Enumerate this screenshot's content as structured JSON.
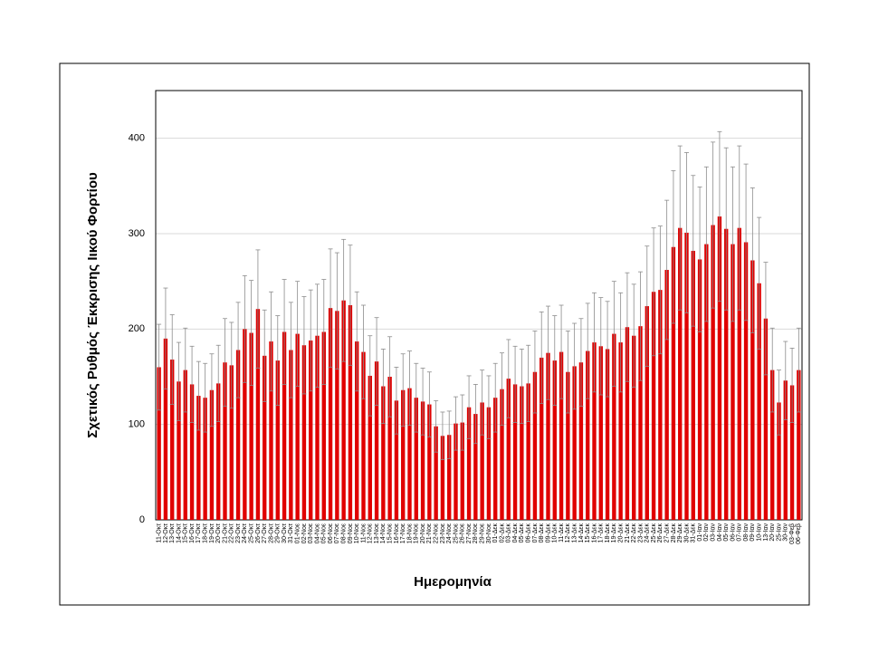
{
  "chart_data": {
    "type": "bar",
    "xlabel": "Ημερομηνία",
    "ylabel": "Σχετικός Ρυθμός Έκκρισης Ιικού Φορτίου",
    "categories": [
      "11-Οκτ",
      "12-Οκτ",
      "13-Οκτ",
      "14-Οκτ",
      "15-Οκτ",
      "16-Οκτ",
      "17-Οκτ",
      "18-Οκτ",
      "19-Οκτ",
      "20-Οκτ",
      "21-Οκτ",
      "22-Οκτ",
      "23-Οκτ",
      "24-Οκτ",
      "25-Οκτ",
      "26-Οκτ",
      "27-Οκτ",
      "28-Οκτ",
      "29-Οκτ",
      "30-Οκτ",
      "31-Οκτ",
      "01-Νοε",
      "02-Νοε",
      "03-Νοε",
      "04-Νοε",
      "05-Νοε",
      "06-Νοε",
      "07-Νοε",
      "08-Νοε",
      "09-Νοε",
      "10-Νοε",
      "11-Νοε",
      "12-Νοε",
      "13-Νοε",
      "14-Νοε",
      "15-Νοε",
      "16-Νοε",
      "17-Νοε",
      "18-Νοε",
      "19-Νοε",
      "20-Νοε",
      "21-Νοε",
      "22-Νοε",
      "23-Νοε",
      "24-Νοε",
      "25-Νοε",
      "26-Νοε",
      "27-Νοε",
      "28-Νοε",
      "29-Νοε",
      "30-Νοε",
      "01-Δεκ",
      "02-Δεκ",
      "03-Δεκ",
      "04-Δεκ",
      "05-Δεκ",
      "06-Δεκ",
      "07-Δεκ",
      "08-Δεκ",
      "09-Δεκ",
      "10-Δεκ",
      "11-Δεκ",
      "12-Δεκ",
      "13-Δεκ",
      "14-Δεκ",
      "15-Δεκ",
      "16-Δεκ",
      "17-Δεκ",
      "18-Δεκ",
      "19-Δεκ",
      "20-Δεκ",
      "21-Δεκ",
      "22-Δεκ",
      "23-Δεκ",
      "24-Δεκ",
      "25-Δεκ",
      "26-Δεκ",
      "27-Δεκ",
      "28-Δεκ",
      "29-Δεκ",
      "30-Δεκ",
      "31-Δεκ",
      "01-Ιαν",
      "02-Ιαν",
      "03-Ιαν",
      "04-Ιαν",
      "05-Ιαν",
      "06-Ιαν",
      "07-Ιαν",
      "08-Ιαν",
      "09-Ιαν",
      "10-Ιαν",
      "13-Ιαν",
      "20-Ιαν",
      "25-Ιαν",
      "30-Ιαν",
      "03-Φεβ",
      "06-Φεβ"
    ],
    "values": [
      160,
      190,
      168,
      145,
      157,
      142,
      130,
      128,
      136,
      143,
      165,
      162,
      178,
      200,
      196,
      221,
      172,
      187,
      167,
      197,
      178,
      195,
      183,
      188,
      193,
      197,
      222,
      219,
      230,
      225,
      187,
      176,
      151,
      166,
      140,
      150,
      125,
      136,
      138,
      128,
      124,
      121,
      98,
      88,
      89,
      101,
      102,
      118,
      111,
      123,
      118,
      128,
      137,
      148,
      142,
      140,
      143,
      155,
      170,
      175,
      167,
      176,
      155,
      161,
      165,
      177,
      186,
      182,
      179,
      195,
      186,
      202,
      193,
      203,
      224,
      239,
      241,
      262,
      286,
      306,
      301,
      282,
      273,
      289,
      309,
      318,
      305,
      289,
      306,
      291,
      272,
      248,
      211,
      157,
      123,
      146,
      141,
      157
    ],
    "errors": [
      45,
      53,
      47,
      41,
      44,
      40,
      36,
      36,
      38,
      40,
      46,
      45,
      50,
      56,
      55,
      62,
      48,
      52,
      47,
      55,
      50,
      55,
      51,
      53,
      54,
      55,
      62,
      61,
      64,
      63,
      52,
      49,
      42,
      46,
      39,
      42,
      35,
      38,
      39,
      36,
      35,
      34,
      27,
      25,
      25,
      28,
      29,
      33,
      31,
      34,
      33,
      36,
      38,
      41,
      40,
      39,
      40,
      43,
      48,
      49,
      47,
      49,
      43,
      45,
      46,
      50,
      52,
      51,
      50,
      55,
      52,
      57,
      54,
      57,
      63,
      67,
      67,
      73,
      80,
      86,
      84,
      79,
      76,
      81,
      87,
      89,
      85,
      81,
      86,
      82,
      76,
      69,
      59,
      44,
      34,
      41,
      39,
      44
    ],
    "color": "#e00000",
    "error_color": "#8c8c8c",
    "ylim": [
      0,
      450
    ],
    "yticks": [
      0,
      100,
      200,
      300,
      400
    ],
    "grid": true
  }
}
